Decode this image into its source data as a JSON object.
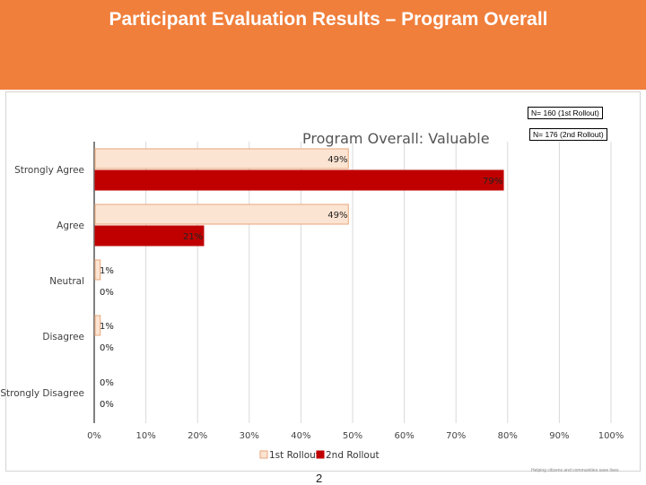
{
  "slide": {
    "title": "Participant Evaluation Results – Program  Overall",
    "page_number": "2"
  },
  "notes": {
    "n1": "N= 160 (1st Rollout)",
    "n2": "N= 176 (2nd Rollout)"
  },
  "footer": {
    "tagline": "Helping citizens and communities save lives"
  },
  "colors": {
    "header": "#f07f3c",
    "series_1": "#fce4d2",
    "series_1_border": "#e8a67a",
    "series_2": "#c00000"
  },
  "chart_data": {
    "type": "bar",
    "orientation": "horizontal",
    "title": "Program  Overall: Valuable",
    "categories": [
      "Strongly Agree",
      "Agree",
      "Neutral",
      "Disagree",
      "Strongly Disagree"
    ],
    "series": [
      {
        "name": "1st Rollout",
        "values": [
          49,
          49,
          1,
          1,
          0
        ]
      },
      {
        "name": "2nd Rollout",
        "values": [
          79,
          21,
          0,
          0,
          0
        ]
      }
    ],
    "data_labels": [
      [
        "49%",
        "49%",
        "1%",
        "1%",
        "0%"
      ],
      [
        "79%",
        "21%",
        "0%",
        "0%",
        "0%"
      ]
    ],
    "xlim": [
      0,
      100
    ],
    "xticks": [
      "0%",
      "10%",
      "20%",
      "30%",
      "40%",
      "50%",
      "60%",
      "70%",
      "80%",
      "90%",
      "100%"
    ],
    "grid": true,
    "legend": "bottom"
  }
}
